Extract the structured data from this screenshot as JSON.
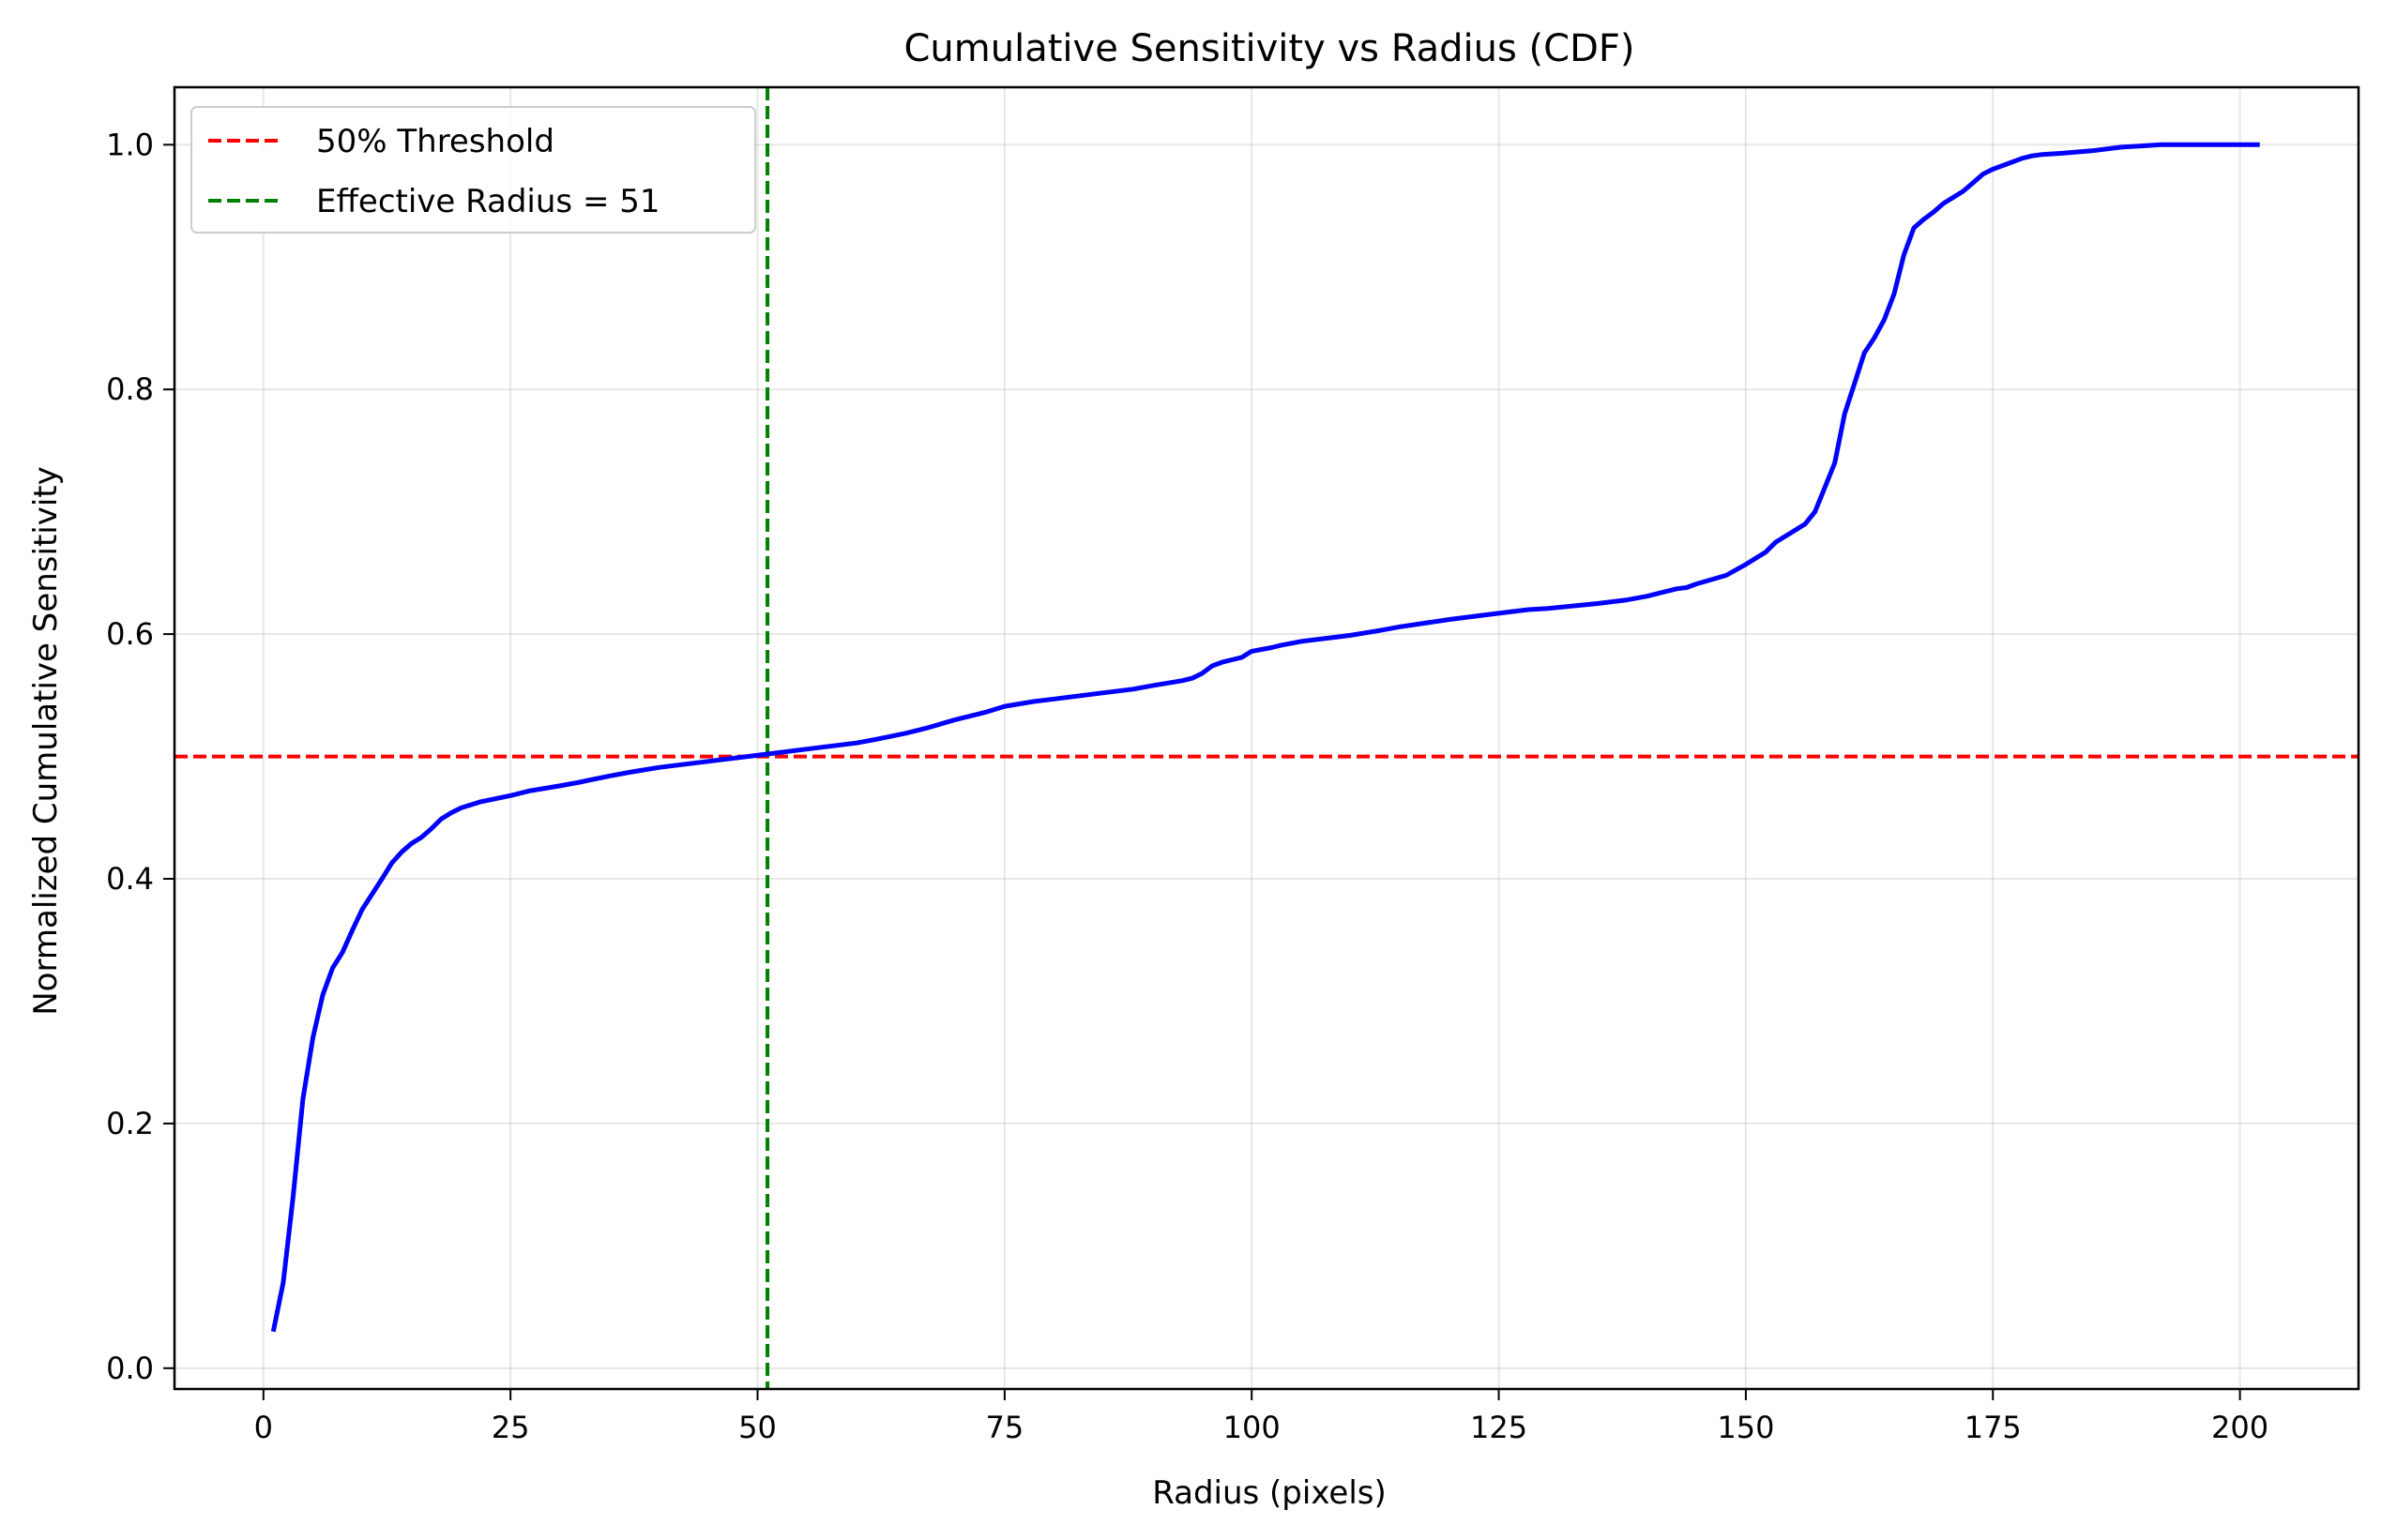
{
  "chart_data": {
    "type": "line",
    "title": "Cumulative Sensitivity vs Radius (CDF)",
    "xlabel": "Radius (pixels)",
    "ylabel": "Normalized Cumulative Sensitivity",
    "xlim": [
      -9,
      212
    ],
    "ylim": [
      -0.017,
      1.047
    ],
    "xticks": [
      0,
      25,
      50,
      75,
      100,
      125,
      150,
      175,
      200
    ],
    "yticks": [
      0.0,
      0.2,
      0.4,
      0.6,
      0.8,
      1.0
    ],
    "xtick_labels": [
      "0",
      "25",
      "50",
      "75",
      "100",
      "125",
      "150",
      "175",
      "200"
    ],
    "ytick_labels": [
      "0.0",
      "0.2",
      "0.4",
      "0.6",
      "0.8",
      "1.0"
    ],
    "grid": true,
    "legend_position": "top-left",
    "series": [
      {
        "color": "#0000ff",
        "x": [
          1,
          2,
          3,
          4,
          5,
          6,
          7,
          8,
          9,
          10,
          12,
          13,
          14,
          15,
          16,
          17,
          18,
          19,
          20,
          22,
          25,
          27,
          30,
          32,
          35,
          37,
          40,
          42,
          45,
          48,
          51,
          55,
          60,
          62,
          65,
          67,
          70,
          73,
          75,
          78,
          80,
          85,
          88,
          90,
          93,
          94,
          95,
          96,
          97,
          98,
          99,
          100,
          102,
          103,
          105,
          108,
          110,
          113,
          115,
          120,
          125,
          128,
          130,
          135,
          138,
          140,
          143,
          144,
          145,
          148,
          150,
          151,
          152,
          153,
          154,
          155,
          156,
          157,
          158,
          159,
          160,
          161,
          162,
          163,
          164,
          165,
          166,
          167,
          168,
          169,
          170,
          171,
          172,
          173,
          174,
          175,
          176,
          177,
          178,
          179,
          180,
          182,
          185,
          188,
          190,
          192,
          195,
          198,
          200,
          202
        ],
        "y": [
          0.03,
          0.07,
          0.14,
          0.22,
          0.27,
          0.305,
          0.327,
          0.34,
          0.358,
          0.375,
          0.4,
          0.413,
          0.422,
          0.429,
          0.434,
          0.441,
          0.449,
          0.454,
          0.458,
          0.463,
          0.468,
          0.472,
          0.476,
          0.479,
          0.484,
          0.487,
          0.491,
          0.493,
          0.496,
          0.499,
          0.502,
          0.506,
          0.511,
          0.514,
          0.519,
          0.523,
          0.53,
          0.536,
          0.541,
          0.545,
          0.547,
          0.552,
          0.555,
          0.558,
          0.562,
          0.564,
          0.568,
          0.574,
          0.577,
          0.579,
          0.581,
          0.586,
          0.589,
          0.591,
          0.594,
          0.597,
          0.599,
          0.603,
          0.606,
          0.612,
          0.617,
          0.62,
          0.621,
          0.625,
          0.628,
          0.631,
          0.637,
          0.638,
          0.641,
          0.648,
          0.657,
          0.662,
          0.667,
          0.675,
          0.68,
          0.685,
          0.69,
          0.7,
          0.72,
          0.74,
          0.78,
          0.805,
          0.83,
          0.842,
          0.857,
          0.878,
          0.91,
          0.932,
          0.939,
          0.945,
          0.952,
          0.957,
          0.962,
          0.969,
          0.976,
          0.98,
          0.983,
          0.986,
          0.989,
          0.991,
          0.992,
          0.993,
          0.995,
          0.998,
          0.999,
          1.0,
          1.0,
          1.0,
          1.0,
          1.0
        ]
      }
    ],
    "reference_lines": [
      {
        "orientation": "horizontal",
        "value": 0.5,
        "color": "#ff0000",
        "style": "dashed",
        "label": "50% Threshold"
      },
      {
        "orientation": "vertical",
        "value": 51,
        "color": "#008000",
        "style": "dashed",
        "label": "Effective Radius = 51"
      }
    ]
  }
}
